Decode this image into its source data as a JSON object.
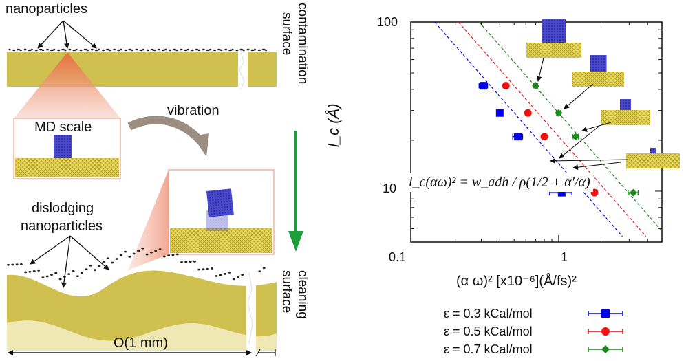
{
  "left": {
    "nanoparticles_label": "nanoparticles",
    "surface_contamination": [
      "surface",
      "contamination"
    ],
    "md_scale_label": "MD scale",
    "vibration_label": "vibration",
    "dislodging_label": [
      "dislodging",
      "nanoparticles"
    ],
    "surface_cleaning": [
      "surface",
      "cleaning"
    ],
    "scale_label": "O(1 mm)",
    "colors": {
      "substrate": "#cfc050",
      "particle": "#3b3bb5",
      "arrow_green": "#1e9e3a",
      "callout": "#f4b8a8"
    }
  },
  "chart_data": {
    "type": "scatter",
    "xscale": "log",
    "yscale": "log",
    "xlim": [
      0.1,
      5
    ],
    "ylim": [
      5,
      100
    ],
    "xticks": [
      {
        "value": 0.1,
        "label": "0.1"
      },
      {
        "value": 1,
        "label": "1"
      }
    ],
    "yticks": [
      {
        "value": 10,
        "label": "10"
      },
      {
        "value": 100,
        "label": "100"
      }
    ],
    "xlabel": "(α ω)² [x10⁻⁶](Å/fs)²",
    "ylabel": "l_c (Å)",
    "equation": "l_c(αω)² = w_adh / ρ(1/2 + α′/α)",
    "series": [
      {
        "name": "ε = 0.3 kCal/mol",
        "color": "#0000ee",
        "marker": "square",
        "x": [
          0.31,
          0.4,
          0.53,
          1.05
        ],
        "y": [
          42,
          29,
          21,
          9.8
        ],
        "xerr": [
          0.02,
          0.015,
          0.04,
          0.18
        ]
      },
      {
        "name": "ε = 0.5 kCal/mol",
        "color": "#ee1111",
        "marker": "circle",
        "x": [
          0.44,
          0.62,
          0.8,
          1.75
        ],
        "y": [
          42,
          29,
          21,
          9.8
        ]
      },
      {
        "name": "ε = 0.7 kCal/mol",
        "color": "#1a8a1a",
        "marker": "diamond",
        "x": [
          0.7,
          1.0,
          1.3,
          3.2
        ],
        "y": [
          42,
          29,
          21,
          9.8
        ],
        "xerr": [
          0.02,
          0.03,
          0.06,
          0.25
        ]
      }
    ],
    "fit_lines": [
      {
        "color": "#0000ee",
        "x0": 0.145,
        "y0": 100,
        "x1": 2.7,
        "y1": 5.4
      },
      {
        "color": "#ee1111",
        "x0": 0.21,
        "y0": 100,
        "x1": 3.9,
        "y1": 5.4
      },
      {
        "color": "#1a8a1a",
        "x0": 0.29,
        "y0": 100,
        "x1": 5.0,
        "y1": 5.8
      }
    ]
  }
}
